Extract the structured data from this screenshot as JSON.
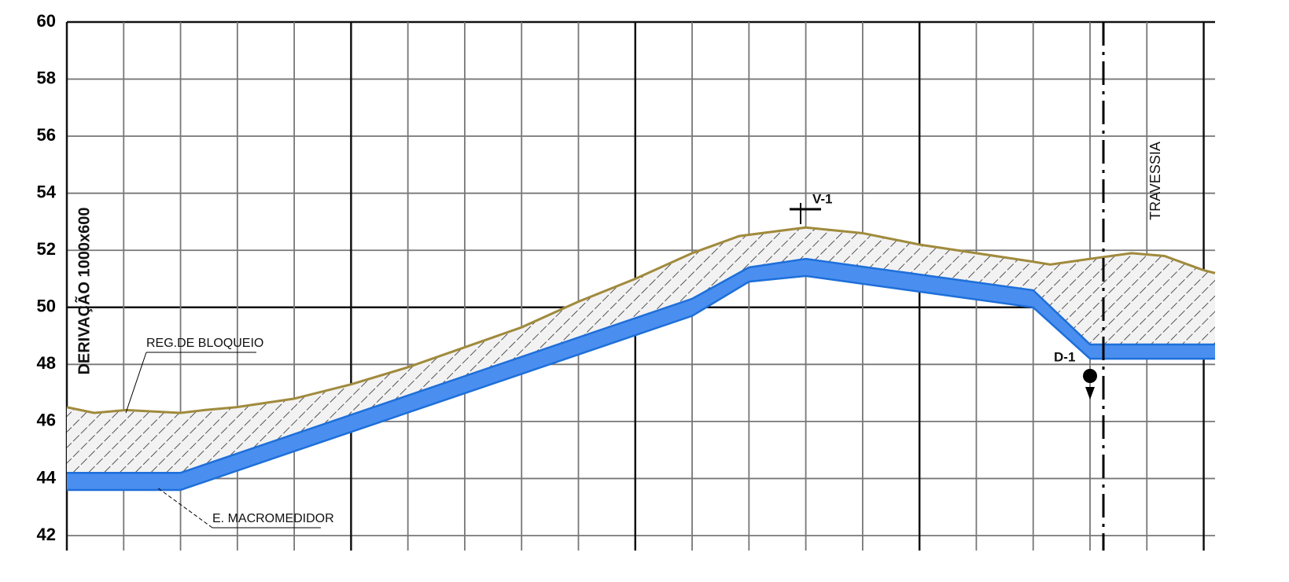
{
  "chart_data": {
    "type": "profile",
    "ylim": [
      42,
      60
    ],
    "yticks": [
      42,
      44,
      46,
      48,
      50,
      52,
      54,
      56,
      58,
      60
    ],
    "xlim": [
      0,
      20.2
    ],
    "xticks": [
      0,
      1,
      2,
      3,
      4,
      5,
      6,
      7,
      8,
      9,
      10,
      11,
      12,
      13,
      14,
      15,
      16,
      17,
      18,
      19,
      20
    ],
    "grid": true,
    "series": [
      {
        "color": "#a08a3c",
        "x": [
          0,
          0.48,
          1.04,
          2,
          2.42,
          2.98,
          4,
          5,
          6,
          7,
          8,
          9,
          10,
          11,
          11.83,
          13,
          14,
          15,
          16,
          17,
          17.3,
          18,
          18.73,
          19.31,
          20,
          20.2
        ],
        "values": [
          46.5,
          46.3,
          46.4,
          46.3,
          46.4,
          46.5,
          46.8,
          47.3,
          47.9,
          48.6,
          49.3,
          50.2,
          51.0,
          51.9,
          52.5,
          52.8,
          52.6,
          52.2,
          51.9,
          51.6,
          51.5,
          51.7,
          51.9,
          51.8,
          51.3,
          51.2
        ]
      },
      {
        "color": "#1e6fd9",
        "x": [
          0,
          2,
          11,
          12,
          13,
          17,
          18,
          20.2
        ],
        "values": [
          44.2,
          44.2,
          50.3,
          51.4,
          51.7,
          50.6,
          48.7,
          48.7
        ]
      },
      {
        "color": "#1e6fd9",
        "x": [
          0,
          2,
          11,
          12,
          13,
          17,
          18,
          20.2
        ],
        "values": [
          43.6,
          43.6,
          49.7,
          50.9,
          51.1,
          50.0,
          48.2,
          48.2
        ]
      }
    ],
    "annotations": [
      "DERIVAÇÃO 1000x600",
      "REG.DE BLOQUEIO",
      "E. MACROMEDIDOR",
      "V-1",
      "D-1",
      "TRAVESSIA"
    ]
  }
}
